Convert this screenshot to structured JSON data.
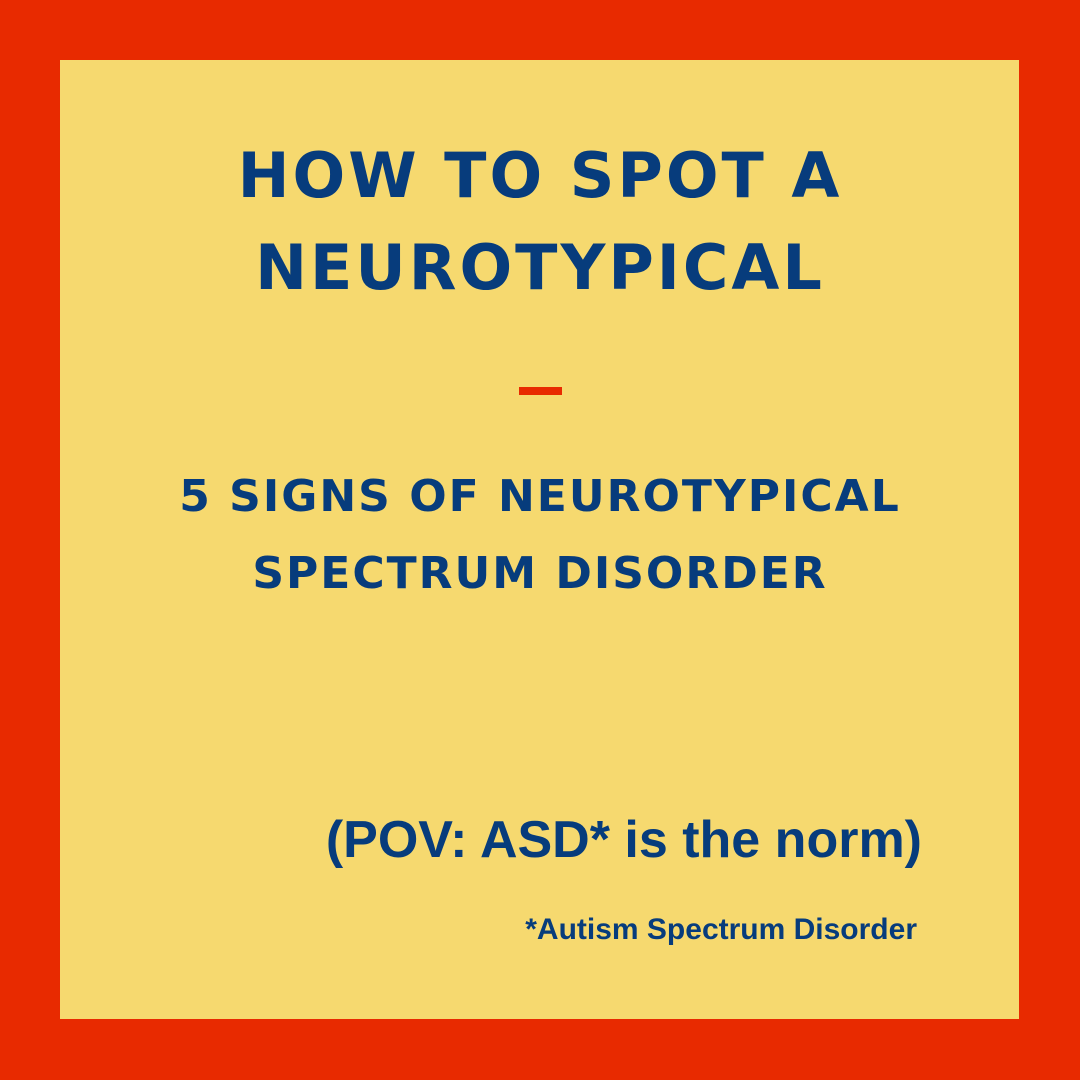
{
  "colors": {
    "frame": "#e82a00",
    "panel": "#f6d96f",
    "text": "#073c7c",
    "divider": "#e82a00"
  },
  "title": {
    "line1": "HOW TO SPOT A",
    "line2": "NEUROTYPICAL"
  },
  "subtitle": {
    "line1": "5 SIGNS OF NEUROTYPICAL",
    "line2": "SPECTRUM DISORDER"
  },
  "pov": "(POV: ASD* is the norm)",
  "footnote": "*Autism Spectrum Disorder"
}
